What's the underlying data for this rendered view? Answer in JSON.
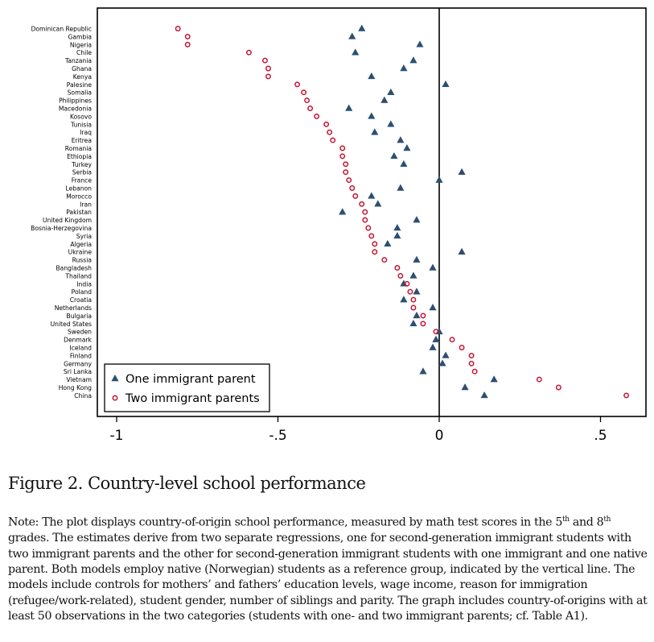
{
  "chart_data": {
    "type": "scatter",
    "title": "",
    "xlabel": "",
    "ylabel": "",
    "xlim": [
      -1.05,
      0.6
    ],
    "xticks": [
      -1,
      -0.5,
      0,
      0.5
    ],
    "xtick_labels": [
      "-1",
      "-.5",
      "0",
      ".5"
    ],
    "reference_line_x": 0,
    "categories": [
      "Dominican Republic",
      "Gambia",
      "Nigeria",
      "Chile",
      "Tanzania",
      "Ghana",
      "Kenya",
      "Palesine",
      "Somalia",
      "Philippines",
      "Macedonia",
      "Kosovo",
      "Tunisia",
      "Iraq",
      "Eritrea",
      "Romania",
      "Ethiopia",
      "Turkey",
      "Serbia",
      "France",
      "Lebanon",
      "Morocco",
      "Iran",
      "Pakistan",
      "United Kingdom",
      "Bosnia-Herzegovina",
      "Syria",
      "Algeria",
      "Ukraine",
      "Russia",
      "Bangladesh",
      "Thailand",
      "India",
      "Poland",
      "Croatia",
      "Netherlands",
      "Bulgaria",
      "United States",
      "Sweden",
      "Denmark",
      "Iceland",
      "Finland",
      "Germany",
      "Sri Lanka",
      "Vietnam",
      "Hong Kong",
      "China"
    ],
    "series": [
      {
        "name": "One immigrant parent",
        "marker": "triangle",
        "color": "#2d4f72",
        "values": [
          -0.24,
          -0.27,
          -0.06,
          -0.26,
          -0.08,
          -0.11,
          -0.21,
          0.02,
          -0.15,
          -0.17,
          -0.28,
          -0.21,
          -0.15,
          -0.2,
          -0.12,
          -0.1,
          -0.14,
          -0.11,
          0.07,
          0.0,
          -0.12,
          -0.21,
          -0.19,
          -0.3,
          -0.07,
          -0.13,
          -0.13,
          -0.16,
          0.07,
          -0.07,
          -0.02,
          -0.08,
          -0.11,
          -0.07,
          -0.11,
          -0.02,
          -0.07,
          -0.08,
          0.0,
          -0.01,
          -0.02,
          0.02,
          0.01,
          -0.05,
          0.17,
          0.08,
          0.14
        ]
      },
      {
        "name": "Two immigrant parents",
        "marker": "circle",
        "color": "#c8102e",
        "values": [
          -0.81,
          -0.78,
          -0.78,
          -0.59,
          -0.54,
          -0.53,
          -0.53,
          -0.44,
          -0.42,
          -0.41,
          -0.4,
          -0.38,
          -0.35,
          -0.34,
          -0.33,
          -0.3,
          -0.3,
          -0.29,
          -0.29,
          -0.28,
          -0.27,
          -0.26,
          -0.24,
          -0.23,
          -0.23,
          -0.22,
          -0.21,
          -0.2,
          -0.2,
          -0.17,
          -0.13,
          -0.12,
          -0.1,
          -0.09,
          -0.08,
          -0.08,
          -0.05,
          -0.05,
          -0.01,
          0.04,
          0.07,
          0.1,
          0.1,
          0.11,
          0.31,
          0.37,
          0.58
        ]
      }
    ],
    "legend_position": "bottom-left"
  },
  "figure": {
    "caption": "Figure 2. Country-level school performance",
    "note_parts": [
      "Note: The plot displays country-of-origin school performance, measured by math test scores in the 5",
      "th",
      " and 8",
      "th",
      " grades. The estimates derive from two separate regressions, one for second-generation immigrant students with two immigrant parents and the other for second-generation immigrant students with one immigrant and one native parent. Both models employ native (Norwegian) students as a reference group, indicated by the vertical line. The models include controls for mothers’ and fathers’ education levels, wage income, reason for immigration (refugee/work-related), student gender, number of siblings and parity. The graph includes country-of-origins with at least 50 observations in the two categories (students with one- and two immigrant parents; cf. Table A1)."
    ]
  },
  "colors": {
    "triangle": "#2d4f72",
    "circle": "#c8102e"
  }
}
